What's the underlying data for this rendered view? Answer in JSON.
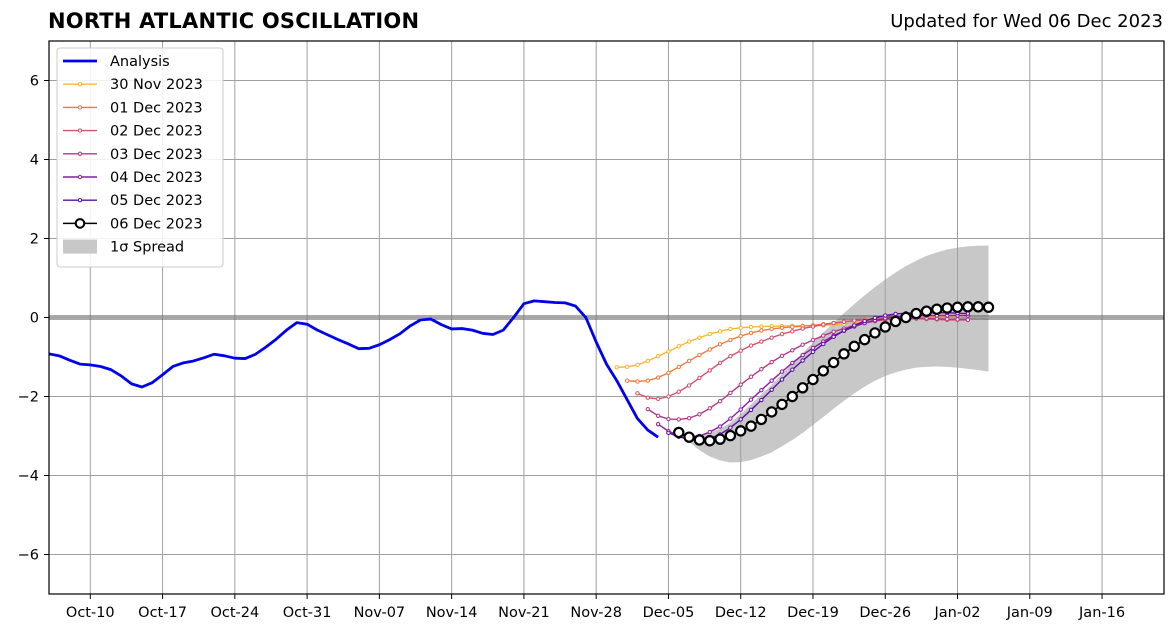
{
  "title": "NORTH ATLANTIC OSCILLATION",
  "subtitle": "Updated for Wed 06 Dec 2023",
  "colors": {
    "analysis": "#0000ee",
    "spread": "#c8c8c8",
    "grid": "#a0a0a0"
  },
  "chart_data": {
    "type": "line",
    "title": "NORTH ATLANTIC OSCILLATION",
    "xlabel": "",
    "ylabel": "",
    "grid": true,
    "legend_position": "top-left",
    "x_unit": "date",
    "xlim": [
      "2023-10-06",
      "2024-01-22"
    ],
    "ylim": [
      -7,
      7
    ],
    "x_ticks": [
      "2023-10-10",
      "2023-10-17",
      "2023-10-24",
      "2023-10-31",
      "2023-11-07",
      "2023-11-14",
      "2023-11-21",
      "2023-11-28",
      "2023-12-05",
      "2023-12-12",
      "2023-12-19",
      "2023-12-26",
      "2024-01-02",
      "2024-01-09",
      "2024-01-16"
    ],
    "x_tick_labels": [
      "Oct-10",
      "Oct-17",
      "Oct-24",
      "Oct-31",
      "Nov-07",
      "Nov-14",
      "Nov-21",
      "Nov-28",
      "Dec-05",
      "Dec-12",
      "Dec-19",
      "Dec-26",
      "Jan-02",
      "Jan-09",
      "Jan-16"
    ],
    "y_ticks": [
      -6,
      -4,
      -2,
      0,
      2,
      4,
      6
    ],
    "y_tick_labels": [
      "−6",
      "−4",
      "−2",
      "0",
      "2",
      "4",
      "6"
    ],
    "analysis": {
      "name": "Analysis",
      "color": "#0000ee",
      "start": "2023-10-06",
      "values": [
        -0.92,
        -0.97,
        -1.08,
        -1.18,
        -1.2,
        -1.24,
        -1.32,
        -1.48,
        -1.68,
        -1.76,
        -1.65,
        -1.45,
        -1.24,
        -1.15,
        -1.1,
        -1.02,
        -0.93,
        -0.97,
        -1.03,
        -1.04,
        -0.93,
        -0.75,
        -0.55,
        -0.32,
        -0.13,
        -0.17,
        -0.32,
        -0.44,
        -0.56,
        -0.67,
        -0.79,
        -0.78,
        -0.69,
        -0.56,
        -0.41,
        -0.21,
        -0.06,
        -0.04,
        -0.18,
        -0.29,
        -0.28,
        -0.32,
        -0.4,
        -0.43,
        -0.32,
        0.0,
        0.35,
        0.42,
        0.4,
        0.38,
        0.37,
        0.29,
        0.0,
        -0.62,
        -1.18,
        -1.6,
        -2.08,
        -2.56,
        -2.85,
        -3.03
      ]
    },
    "series": [
      {
        "name": "30 Nov 2023",
        "color": "#f8b730",
        "start": "2023-11-30",
        "values": [
          -1.26,
          -1.25,
          -1.2,
          -1.1,
          -0.98,
          -0.86,
          -0.73,
          -0.61,
          -0.51,
          -0.42,
          -0.35,
          -0.29,
          -0.26,
          -0.24,
          -0.23,
          -0.22,
          -0.22,
          -0.21,
          -0.21,
          -0.2,
          -0.2,
          -0.18,
          -0.17,
          -0.14,
          -0.11,
          -0.1,
          -0.06,
          -0.04,
          -0.02,
          0.0,
          0.01,
          0.02,
          0.03,
          0.04,
          0.04
        ]
      },
      {
        "name": "01 Dec 2023",
        "color": "#ef7b3f",
        "start": "2023-12-01",
        "values": [
          -1.6,
          -1.62,
          -1.6,
          -1.52,
          -1.4,
          -1.25,
          -1.1,
          -0.95,
          -0.81,
          -0.68,
          -0.57,
          -0.47,
          -0.39,
          -0.33,
          -0.29,
          -0.26,
          -0.24,
          -0.22,
          -0.2,
          -0.17,
          -0.14,
          -0.11,
          -0.08,
          -0.05,
          -0.02,
          0.0,
          0.02,
          0.03,
          0.04,
          0.04,
          0.05,
          0.05,
          0.05,
          0.05
        ]
      },
      {
        "name": "02 Dec 2023",
        "color": "#d6526c",
        "start": "2023-12-02",
        "values": [
          -1.92,
          -2.03,
          -2.06,
          -2.0,
          -1.88,
          -1.72,
          -1.53,
          -1.34,
          -1.15,
          -0.98,
          -0.84,
          -0.71,
          -0.61,
          -0.51,
          -0.42,
          -0.35,
          -0.28,
          -0.23,
          -0.18,
          -0.14,
          -0.11,
          -0.08,
          -0.06,
          -0.05,
          -0.04,
          -0.03,
          -0.03,
          -0.03,
          -0.04,
          -0.05,
          -0.06,
          -0.06,
          -0.06
        ]
      },
      {
        "name": "03 Dec 2023",
        "color": "#b5368b",
        "start": "2023-12-03",
        "values": [
          -2.32,
          -2.49,
          -2.57,
          -2.58,
          -2.55,
          -2.45,
          -2.3,
          -2.12,
          -1.91,
          -1.7,
          -1.5,
          -1.31,
          -1.13,
          -0.97,
          -0.83,
          -0.69,
          -0.57,
          -0.46,
          -0.36,
          -0.28,
          -0.2,
          -0.14,
          -0.09,
          -0.05,
          -0.03,
          -0.02,
          -0.02,
          -0.02,
          -0.03,
          -0.04,
          -0.05,
          -0.06
        ]
      },
      {
        "name": "04 Dec 2023",
        "color": "#9119a8",
        "start": "2023-12-04",
        "values": [
          -2.7,
          -2.88,
          -2.98,
          -3.02,
          -3.0,
          -2.9,
          -2.76,
          -2.56,
          -2.33,
          -2.08,
          -1.84,
          -1.6,
          -1.37,
          -1.15,
          -0.95,
          -0.77,
          -0.61,
          -0.46,
          -0.34,
          -0.23,
          -0.14,
          -0.07,
          -0.02,
          0.02,
          0.04,
          0.05,
          0.05,
          0.05,
          0.05,
          0.05,
          0.05
        ]
      },
      {
        "name": "05 Dec 2023",
        "color": "#5a10a5",
        "start": "2023-12-05",
        "values": [
          -2.92,
          -3.02,
          -3.08,
          -3.1,
          -3.06,
          -2.96,
          -2.79,
          -2.58,
          -2.34,
          -2.09,
          -1.83,
          -1.57,
          -1.32,
          -1.09,
          -0.87,
          -0.67,
          -0.49,
          -0.33,
          -0.2,
          -0.09,
          -0.01,
          0.05,
          0.09,
          0.11,
          0.12,
          0.12,
          0.12,
          0.12,
          0.11,
          0.1
        ]
      },
      {
        "name": "06 Dec 2023",
        "color": "#000000",
        "start": "2023-12-06",
        "values": [
          -2.91,
          -3.03,
          -3.1,
          -3.12,
          -3.08,
          -2.99,
          -2.87,
          -2.75,
          -2.58,
          -2.39,
          -2.2,
          -2.0,
          -1.78,
          -1.57,
          -1.35,
          -1.14,
          -0.92,
          -0.73,
          -0.56,
          -0.39,
          -0.24,
          -0.1,
          0.0,
          0.1,
          0.16,
          0.21,
          0.24,
          0.26,
          0.27,
          0.27,
          0.26
        ]
      }
    ],
    "spread": {
      "name": "1σ Spread",
      "color": "#c8c8c8",
      "start": "2023-12-06",
      "upper": [
        -2.91,
        -3.0,
        -2.98,
        -2.92,
        -2.82,
        -2.66,
        -2.45,
        -2.2,
        -1.95,
        -1.7,
        -1.43,
        -1.16,
        -0.9,
        -0.64,
        -0.38,
        -0.13,
        0.11,
        0.34,
        0.56,
        0.77,
        0.96,
        1.14,
        1.3,
        1.44,
        1.56,
        1.65,
        1.72,
        1.77,
        1.8,
        1.82,
        1.82
      ],
      "lower": [
        -2.91,
        -3.15,
        -3.36,
        -3.52,
        -3.62,
        -3.67,
        -3.66,
        -3.61,
        -3.52,
        -3.41,
        -3.26,
        -3.1,
        -2.92,
        -2.72,
        -2.52,
        -2.31,
        -2.11,
        -1.92,
        -1.75,
        -1.6,
        -1.48,
        -1.39,
        -1.32,
        -1.27,
        -1.25,
        -1.24,
        -1.25,
        -1.27,
        -1.3,
        -1.33,
        -1.37
      ]
    }
  }
}
